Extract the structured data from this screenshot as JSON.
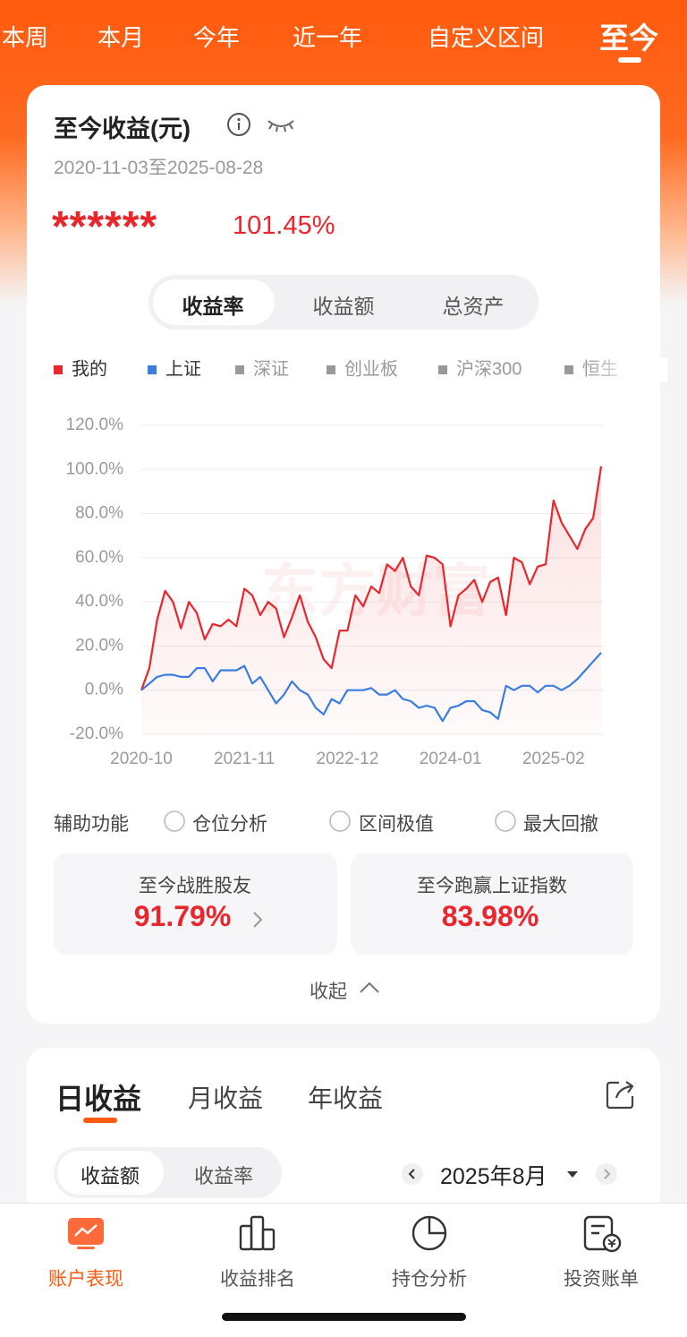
{
  "tabs": {
    "items": [
      "本周",
      "本月",
      "今年",
      "近一年",
      "自定义区间",
      "至今"
    ]
  },
  "summary": {
    "title": "至今收益(元)",
    "date_range": "2020-11-03至2025-08-28",
    "masked_amount": "******",
    "return": "101.45%"
  },
  "metric_toggle": [
    "收益率",
    "收益额",
    "总资产"
  ],
  "chart": {
    "type": "line",
    "watermark": "东方财富",
    "x": [
      0,
      1,
      2,
      3,
      4,
      5,
      6,
      7,
      8,
      9,
      10,
      11,
      12,
      13,
      14,
      15,
      16,
      17,
      18,
      19,
      20,
      21,
      22,
      23,
      24,
      25,
      26,
      27,
      28,
      29,
      30,
      31,
      32,
      33,
      34,
      35,
      36,
      37,
      38,
      39,
      40,
      41,
      42,
      43,
      44,
      45,
      46,
      47,
      48,
      49,
      50,
      51,
      52,
      53,
      54,
      55,
      56,
      57,
      58
    ],
    "xlim": [
      0,
      58
    ],
    "xticks": [
      {
        "value": 0,
        "label": "2020-10"
      },
      {
        "value": 13,
        "label": "2021-11"
      },
      {
        "value": 26,
        "label": "2022-12"
      },
      {
        "value": 39,
        "label": "2024-01"
      },
      {
        "value": 52,
        "label": "2025-02"
      }
    ],
    "ylim": [
      -20,
      120
    ],
    "yticks": [
      {
        "value": 120,
        "label": "120.0%"
      },
      {
        "value": 100,
        "label": "100.0%"
      },
      {
        "value": 80,
        "label": "80.0%"
      },
      {
        "value": 60,
        "label": "60.0%"
      },
      {
        "value": 40,
        "label": "40.0%"
      },
      {
        "value": 20,
        "label": "20.0%"
      },
      {
        "value": 0,
        "label": "0.0%"
      },
      {
        "value": -20,
        "label": "-20.0%"
      }
    ],
    "grid": true,
    "series": [
      {
        "name": "我的",
        "color": "#e8262c",
        "area": true,
        "values": [
          0,
          10,
          32,
          45,
          40,
          28,
          40,
          35,
          23,
          30,
          29,
          32,
          29,
          46,
          43,
          34,
          40,
          37,
          24,
          33,
          43,
          31,
          24,
          14,
          10,
          27,
          27,
          43,
          38,
          47,
          44,
          57,
          54,
          60,
          47,
          43,
          61,
          60,
          57,
          29,
          43,
          46,
          50,
          40,
          49,
          51,
          34,
          60,
          58,
          48,
          56,
          57,
          86,
          76,
          70,
          64,
          73,
          78,
          101.45
        ]
      },
      {
        "name": "上证",
        "color": "#3a7de0",
        "values": [
          0,
          3,
          6,
          7,
          7,
          6,
          6,
          10,
          10,
          4,
          9,
          9,
          9,
          11,
          3,
          6,
          0,
          -6,
          -2,
          4,
          0,
          -2,
          -8,
          -11,
          -4,
          -6,
          0,
          0,
          0,
          1,
          -2,
          -2,
          0,
          -4,
          -5,
          -8,
          -7,
          -8,
          -14,
          -8,
          -7,
          -5,
          -5,
          -9,
          -10,
          -13,
          2,
          0,
          2,
          2,
          -1,
          2,
          2,
          0,
          2,
          5,
          9,
          13,
          17
        ]
      }
    ],
    "inactive_series": [
      {
        "name": "深证",
        "color": "#999999"
      },
      {
        "name": "创业板",
        "color": "#999999"
      },
      {
        "name": "沪深300",
        "color": "#999999"
      },
      {
        "name": "恒生",
        "color": "#999999"
      }
    ]
  },
  "assist": {
    "label": "辅助功能",
    "options": [
      "仓位分析",
      "区间极值",
      "最大回撤"
    ]
  },
  "stats": [
    {
      "label": "至今战胜股友",
      "value": "91.79%"
    },
    {
      "label": "至今跑赢上证指数",
      "value": "83.98%"
    }
  ],
  "collapse": "收起",
  "period_tabs": [
    "日收益",
    "月收益",
    "年收益"
  ],
  "value_toggle": [
    "收益额",
    "收益率"
  ],
  "month": "2025年8月",
  "nav": [
    "账户表现",
    "收益排名",
    "持仓分析",
    "投资账单"
  ]
}
